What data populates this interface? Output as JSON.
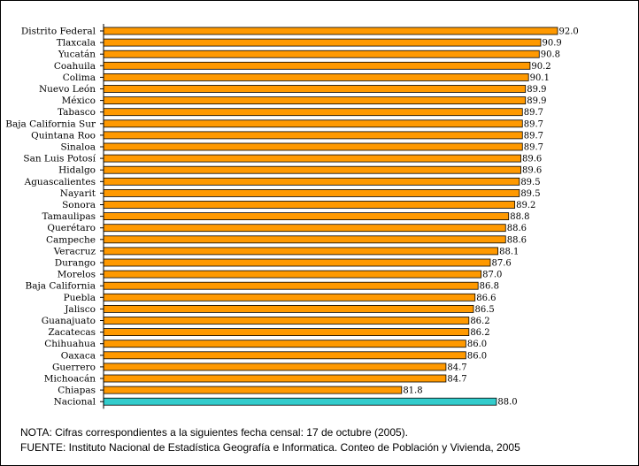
{
  "chart_data": {
    "type": "bar",
    "orientation": "horizontal",
    "title": "",
    "xlabel": "",
    "ylabel": "",
    "xlim": [
      62.3,
      92.0
    ],
    "grid": false,
    "legend": "none",
    "categories": [
      "Distrito Federal",
      "Tlaxcala",
      "Yucatán",
      "Coahuila",
      "Colima",
      "Nuevo León",
      "México",
      "Tabasco",
      "Baja California Sur",
      "Quintana Roo",
      "Sinaloa",
      "San Luis Potosí",
      "Hidalgo",
      "Aguascalientes",
      "Nayarit",
      "Sonora",
      "Tamaulipas",
      "Querétaro",
      "Campeche",
      "Veracruz",
      "Durango",
      "Morelos",
      "Baja California",
      "Puebla",
      "Jalisco",
      "Guanajuato",
      "Zacatecas",
      "Chihuahua",
      "Oaxaca",
      "Guerrero",
      "Michoacán",
      "Chiapas",
      "Nacional"
    ],
    "values": [
      92.0,
      90.9,
      90.8,
      90.2,
      90.1,
      89.9,
      89.9,
      89.7,
      89.7,
      89.7,
      89.7,
      89.6,
      89.6,
      89.5,
      89.5,
      89.2,
      88.8,
      88.6,
      88.6,
      88.1,
      87.6,
      87.0,
      86.8,
      86.6,
      86.5,
      86.2,
      86.2,
      86.0,
      86.0,
      84.7,
      84.7,
      81.8,
      88.0
    ],
    "labels": [
      "92.0",
      "90.9",
      "90.8",
      "90.2",
      "90.1",
      "89.9",
      "89.9",
      "89.7",
      "89.7",
      "89.7",
      "89.7",
      "89.6",
      "89.6",
      "89.5",
      "89.5",
      "89.2",
      "88.8",
      "88.6",
      "88.6",
      "88.1",
      "87.6",
      "87.0",
      "86.8",
      "86.6",
      "86.5",
      "86.2",
      "86.2",
      "86.0",
      "86.0",
      "84.7",
      "84.7",
      "81.8",
      "88.0"
    ],
    "colors": {
      "bar": "#ff9900",
      "highlight": "#33cccc",
      "stroke": "#000000"
    },
    "highlight_category": "Nacional"
  },
  "notes": {
    "nota": "NOTA: Cifras correspondientes a la siguientes fecha censal: 17 de octubre (2005).",
    "fuente": "FUENTE:  Instituto Nacional de Estadística Geografía e Informatica. Conteo de Población y Vivienda, 2005"
  }
}
